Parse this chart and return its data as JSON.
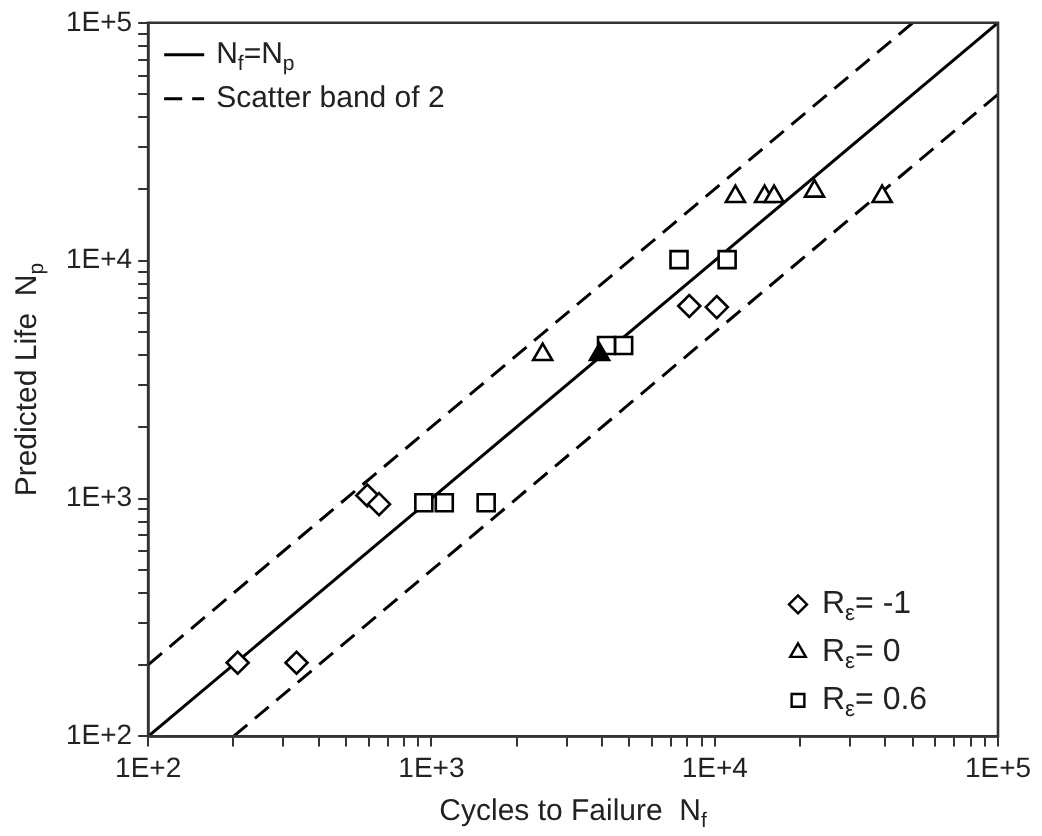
{
  "chart_data": {
    "type": "scatter",
    "xlabel": "Cycles to Failure  N$_{f}$",
    "ylabel": "Predicted Life  N$_{p}$",
    "log": "xy",
    "grid": false,
    "legend": "top left",
    "xlim": [
      100,
      100000
    ],
    "ylim": [
      100,
      100000
    ],
    "xticks": [
      {
        "value": 100,
        "label": "1E+2"
      },
      {
        "value": 200,
        "label": null
      },
      {
        "value": 300,
        "label": null
      },
      {
        "value": 400,
        "label": null
      },
      {
        "value": 500,
        "label": null
      },
      {
        "value": 600,
        "label": null
      },
      {
        "value": 700,
        "label": null
      },
      {
        "value": 800,
        "label": null
      },
      {
        "value": 900,
        "label": null
      },
      {
        "value": 1000,
        "label": "1E+3"
      },
      {
        "value": 2000,
        "label": null
      },
      {
        "value": 3000,
        "label": null
      },
      {
        "value": 4000,
        "label": null
      },
      {
        "value": 5000,
        "label": null
      },
      {
        "value": 6000,
        "label": null
      },
      {
        "value": 7000,
        "label": null
      },
      {
        "value": 8000,
        "label": null
      },
      {
        "value": 9000,
        "label": null
      },
      {
        "value": 10000,
        "label": "1E+4"
      },
      {
        "value": 20000,
        "label": null
      },
      {
        "value": 30000,
        "label": null
      },
      {
        "value": 40000,
        "label": null
      },
      {
        "value": 50000,
        "label": null
      },
      {
        "value": 60000,
        "label": null
      },
      {
        "value": 70000,
        "label": null
      },
      {
        "value": 80000,
        "label": null
      },
      {
        "value": 90000,
        "label": null
      },
      {
        "value": 100000,
        "label": "1E+5"
      }
    ],
    "yticks": [
      {
        "value": 100,
        "label": "1E+2"
      },
      {
        "value": 200,
        "label": null
      },
      {
        "value": 300,
        "label": null
      },
      {
        "value": 400,
        "label": null
      },
      {
        "value": 500,
        "label": null
      },
      {
        "value": 600,
        "label": null
      },
      {
        "value": 700,
        "label": null
      },
      {
        "value": 800,
        "label": null
      },
      {
        "value": 900,
        "label": null
      },
      {
        "value": 1000,
        "label": "1E+3"
      },
      {
        "value": 2000,
        "label": null
      },
      {
        "value": 3000,
        "label": null
      },
      {
        "value": 4000,
        "label": null
      },
      {
        "value": 5000,
        "label": null
      },
      {
        "value": 6000,
        "label": null
      },
      {
        "value": 7000,
        "label": null
      },
      {
        "value": 8000,
        "label": null
      },
      {
        "value": 9000,
        "label": null
      },
      {
        "value": 10000,
        "label": "1E+4"
      },
      {
        "value": 20000,
        "label": null
      },
      {
        "value": 30000,
        "label": null
      },
      {
        "value": 40000,
        "label": null
      },
      {
        "value": 50000,
        "label": null
      },
      {
        "value": 60000,
        "label": null
      },
      {
        "value": 70000,
        "label": null
      },
      {
        "value": 80000,
        "label": null
      },
      {
        "value": 90000,
        "label": null
      },
      {
        "value": 100000,
        "label": "1E+5"
      }
    ],
    "series": [
      {
        "name": "N$_{f}$=N$_{p}$",
        "type": "line",
        "line_style": "solid",
        "marker": "none",
        "color": "#000000",
        "x": [
          100,
          100000
        ],
        "values": [
          100,
          100000
        ]
      },
      {
        "name": "Scatter band of 2",
        "type": "line",
        "line_style": "dashed",
        "marker": "none",
        "color": "#000000",
        "x": [
          100,
          50000
        ],
        "values": [
          200,
          100000
        ]
      },
      {
        "type": "line",
        "line_style": "dashed",
        "marker": "none",
        "color": "#000000",
        "x": [
          200,
          100000
        ],
        "values": [
          100,
          50000
        ]
      },
      {
        "name": "R$_{ε}$= -1",
        "marker": "diamond",
        "color": "#000000",
        "x": [
          8130,
          10170,
          594,
          653,
          207,
          334
        ],
        "values": [
          6450,
          6380,
          1030,
          947,
          204,
          204
        ]
      },
      {
        "name": "R$_{ε}$= 0",
        "marker": "triangle",
        "color": "#000000",
        "x": [
          11830,
          15000,
          16200,
          22500,
          39000,
          2470
        ],
        "values": [
          18600,
          18600,
          18600,
          19600,
          18600,
          4030
        ]
      },
      {
        "marker": "triangle",
        "color": "#000000",
        "x": [
          3920
        ],
        "values": [
          4030
        ]
      },
      {
        "name": "R$_{ε}$= 0.6",
        "marker": "square",
        "color": "#000000",
        "x": [
          7480,
          11060,
          4150,
          4770,
          940,
          1110,
          1560
        ],
        "values": [
          10100,
          10100,
          4400,
          4400,
          960,
          960,
          960
        ]
      }
    ]
  }
}
